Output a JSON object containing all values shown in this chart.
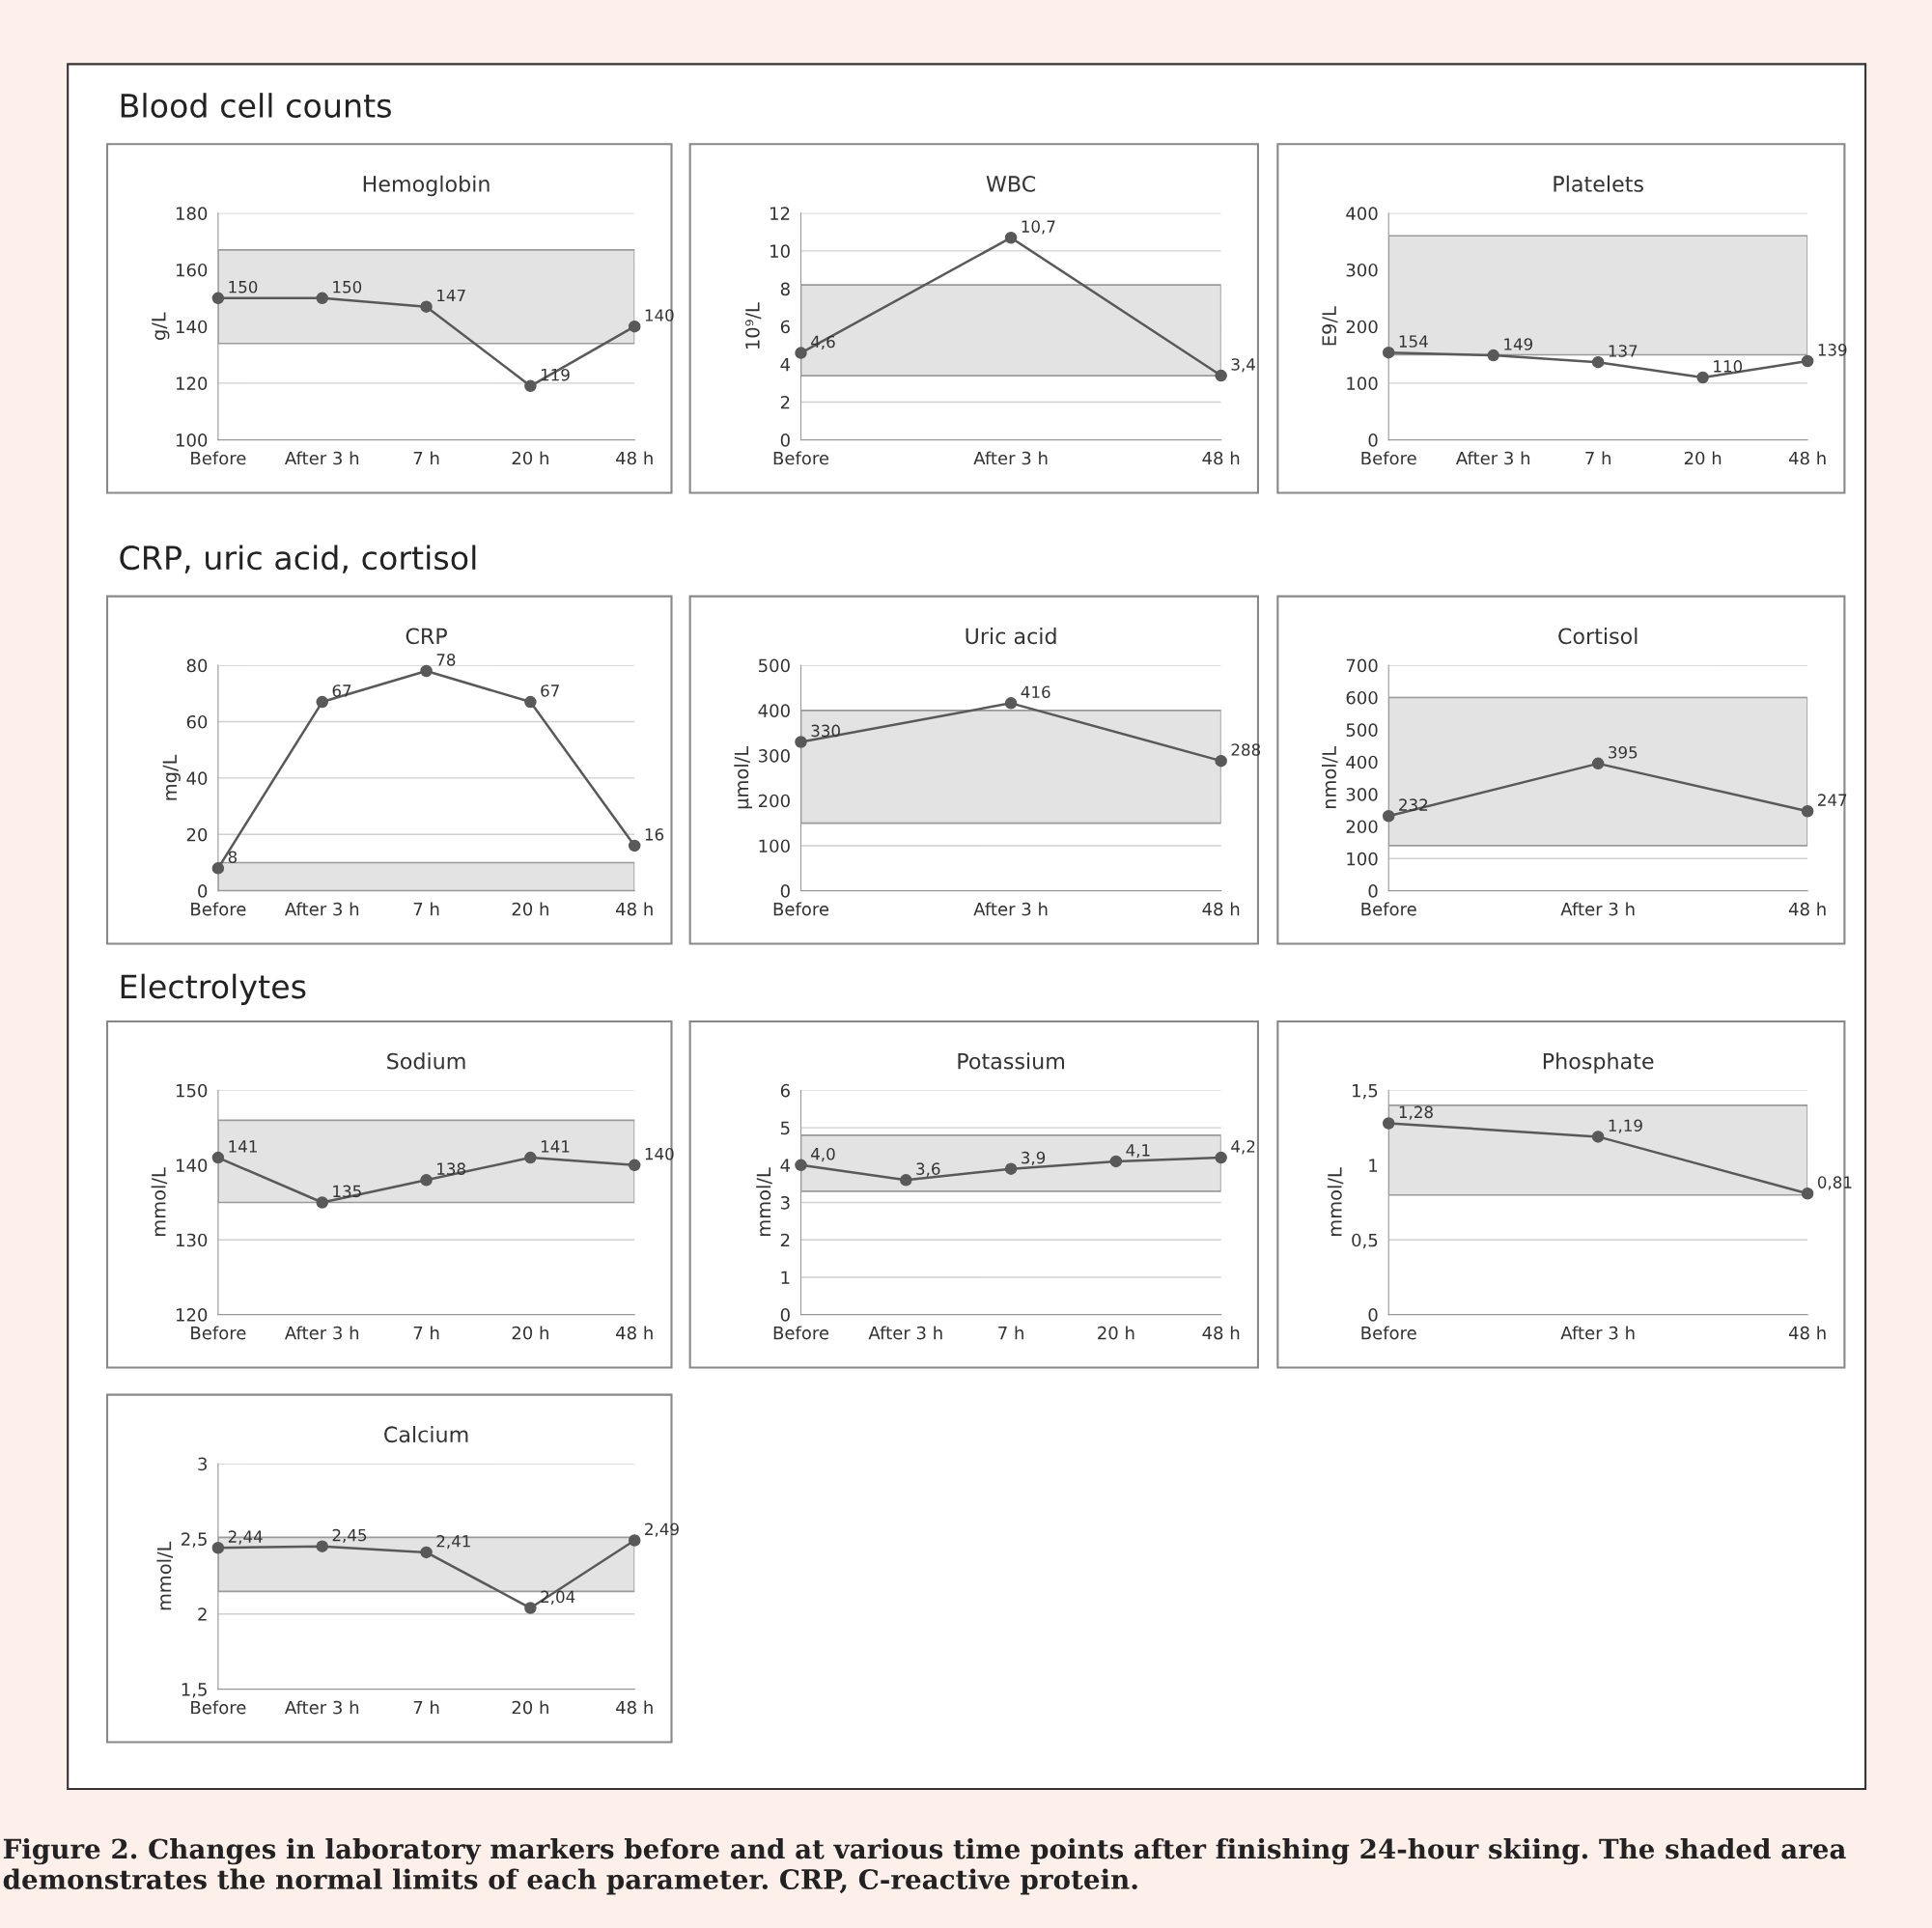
{
  "chart_data": [
    {
      "type": "line",
      "title": "Hemoglobin",
      "ylabel": "g/L",
      "annotations": [
        "Blood cell counts"
      ],
      "categories": [
        "Before",
        "After 3 h",
        "7 h",
        "20 h",
        "48 h"
      ],
      "series": [
        {
          "color": "#595959",
          "values": [
            150,
            150,
            147,
            119,
            140
          ]
        }
      ],
      "value_labels": [
        "150",
        "150",
        "147",
        "119",
        "140"
      ],
      "ylim": [
        100,
        180
      ],
      "yticks": [
        100,
        120,
        140,
        160,
        180
      ],
      "bands": [
        {
          "axis": "y",
          "from": 134,
          "to": 167,
          "color": "#e3e3e3"
        }
      ],
      "grid": "y",
      "marker": "circle",
      "line_style": "solid"
    },
    {
      "type": "line",
      "title": "WBC",
      "ylabel": "10⁹/L",
      "categories": [
        "Before",
        "After 3 h",
        "48 h"
      ],
      "series": [
        {
          "color": "#595959",
          "values": [
            4.6,
            10.7,
            3.4
          ]
        }
      ],
      "value_labels": [
        "4,6",
        "10,7",
        "3,4"
      ],
      "ylim": [
        0,
        12
      ],
      "yticks": [
        0,
        2,
        4,
        6,
        8,
        10,
        12
      ],
      "bands": [
        {
          "axis": "y",
          "from": 3.4,
          "to": 8.2,
          "color": "#e3e3e3"
        }
      ],
      "grid": "y",
      "marker": "circle",
      "line_style": "solid"
    },
    {
      "type": "line",
      "title": "Platelets",
      "ylabel": "E9/L",
      "categories": [
        "Before",
        "After 3 h",
        "7 h",
        "20 h",
        "48 h"
      ],
      "series": [
        {
          "color": "#595959",
          "values": [
            154,
            149,
            137,
            110,
            139
          ]
        }
      ],
      "value_labels": [
        "154",
        "149",
        "137",
        "110",
        "139"
      ],
      "ylim": [
        0,
        400
      ],
      "yticks": [
        0,
        100,
        200,
        300,
        400
      ],
      "bands": [
        {
          "axis": "y",
          "from": 150,
          "to": 360,
          "color": "#e3e3e3"
        }
      ],
      "grid": "y",
      "marker": "circle",
      "line_style": "solid"
    },
    {
      "type": "line",
      "title": "CRP",
      "ylabel": "mg/L",
      "annotations": [
        "CRP, uric acid, cortisol"
      ],
      "categories": [
        "Before",
        "After 3 h",
        "7 h",
        "20 h",
        "48 h"
      ],
      "series": [
        {
          "color": "#595959",
          "values": [
            8,
            67,
            78,
            67,
            16
          ]
        }
      ],
      "value_labels": [
        "8",
        "67",
        "78",
        "67",
        "16"
      ],
      "ylim": [
        0,
        80
      ],
      "yticks": [
        0,
        20,
        40,
        60,
        80
      ],
      "bands": [
        {
          "axis": "y",
          "from": 0,
          "to": 10,
          "color": "#e3e3e3"
        }
      ],
      "grid": "y",
      "marker": "circle",
      "line_style": "solid"
    },
    {
      "type": "line",
      "title": "Uric acid",
      "ylabel": "µmol/L",
      "categories": [
        "Before",
        "After 3 h",
        "48 h"
      ],
      "series": [
        {
          "color": "#595959",
          "values": [
            330,
            416,
            288
          ]
        }
      ],
      "value_labels": [
        "330",
        "416",
        "288"
      ],
      "ylim": [
        0,
        500
      ],
      "yticks": [
        0,
        100,
        200,
        300,
        400,
        500
      ],
      "bands": [
        {
          "axis": "y",
          "from": 150,
          "to": 400,
          "color": "#e3e3e3"
        }
      ],
      "grid": "y",
      "marker": "circle",
      "line_style": "solid"
    },
    {
      "type": "line",
      "title": "Cortisol",
      "ylabel": "nmol/L",
      "categories": [
        "Before",
        "After 3 h",
        "48 h"
      ],
      "series": [
        {
          "color": "#595959",
          "values": [
            232,
            395,
            247
          ]
        }
      ],
      "value_labels": [
        "232",
        "395",
        "247"
      ],
      "ylim": [
        0,
        700
      ],
      "yticks": [
        0,
        100,
        200,
        300,
        400,
        500,
        600,
        700
      ],
      "bands": [
        {
          "axis": "y",
          "from": 140,
          "to": 600,
          "color": "#e3e3e3"
        }
      ],
      "grid": "y",
      "marker": "circle",
      "line_style": "solid"
    },
    {
      "type": "line",
      "title": "Sodium",
      "ylabel": "mmol/L",
      "annotations": [
        "Electrolytes"
      ],
      "categories": [
        "Before",
        "After 3 h",
        "7 h",
        "20 h",
        "48 h"
      ],
      "series": [
        {
          "color": "#595959",
          "values": [
            141,
            135,
            138,
            141,
            140
          ]
        }
      ],
      "value_labels": [
        "141",
        "135",
        "138",
        "141",
        "140"
      ],
      "ylim": [
        120,
        150
      ],
      "yticks": [
        120,
        130,
        140,
        150
      ],
      "bands": [
        {
          "axis": "y",
          "from": 135,
          "to": 146,
          "color": "#e3e3e3"
        }
      ],
      "grid": "y",
      "marker": "circle",
      "line_style": "solid"
    },
    {
      "type": "line",
      "title": "Potassium",
      "ylabel": "mmol/L",
      "categories": [
        "Before",
        "After 3 h",
        "7 h",
        "20 h",
        "48 h"
      ],
      "series": [
        {
          "color": "#595959",
          "values": [
            4.0,
            3.6,
            3.9,
            4.1,
            4.2
          ]
        }
      ],
      "value_labels": [
        "4,0",
        "3,6",
        "3,9",
        "4,1",
        "4,2"
      ],
      "ylim": [
        0,
        6
      ],
      "yticks": [
        0,
        1,
        2,
        3,
        4,
        5,
        6
      ],
      "bands": [
        {
          "axis": "y",
          "from": 3.3,
          "to": 4.8,
          "color": "#e3e3e3"
        }
      ],
      "grid": "y",
      "marker": "circle",
      "line_style": "solid"
    },
    {
      "type": "line",
      "title": "Phosphate",
      "ylabel": "mmol/L",
      "categories": [
        "Before",
        "After 3 h",
        "48 h"
      ],
      "series": [
        {
          "color": "#595959",
          "values": [
            1.28,
            1.19,
            0.81
          ]
        }
      ],
      "value_labels": [
        "1,28",
        "1,19",
        "0,81"
      ],
      "ylim": [
        0,
        1.5
      ],
      "yticks": [
        0,
        {
          "value": 0.5,
          "label": "0,5"
        },
        1,
        {
          "value": 1.5,
          "label": "1,5"
        }
      ],
      "bands": [
        {
          "axis": "y",
          "from": 0.8,
          "to": 1.4,
          "color": "#e3e3e3"
        }
      ],
      "grid": "y",
      "marker": "circle",
      "line_style": "solid"
    },
    {
      "type": "line",
      "title": "Calcium",
      "ylabel": "mmol/L",
      "annotations": [
        "Figure 2. Changes in laboratory markers before and at various time points after finishing 24-hour skiing. The shaded area demonstrates the normal limits of each parameter. CRP, C-reactive protein."
      ],
      "categories": [
        "Before",
        "After 3 h",
        "7 h",
        "20 h",
        "48 h"
      ],
      "series": [
        {
          "color": "#595959",
          "values": [
            2.44,
            2.45,
            2.41,
            2.04,
            2.49
          ]
        }
      ],
      "value_labels": [
        "2,44",
        "2,45",
        "2,41",
        "2,04",
        "2,49"
      ],
      "ylim": [
        1.5,
        3
      ],
      "yticks": [
        {
          "value": 1.5,
          "label": "1,5"
        },
        2,
        {
          "value": 2.5,
          "label": "2,5"
        },
        3
      ],
      "bands": [
        {
          "axis": "y",
          "from": 2.15,
          "to": 2.51,
          "color": "#e3e3e3"
        }
      ],
      "grid": "y",
      "marker": "circle",
      "line_style": "solid"
    }
  ]
}
